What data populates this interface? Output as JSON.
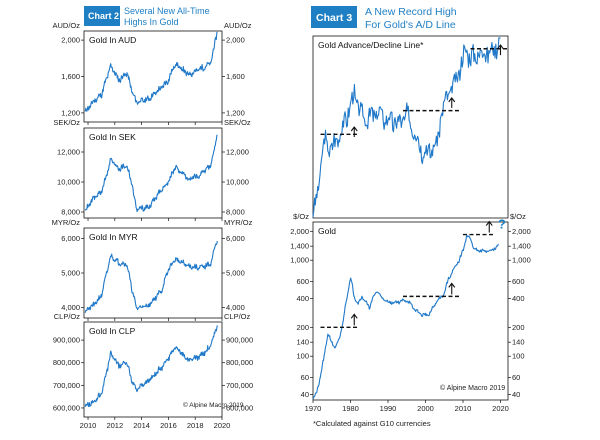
{
  "chart2": {
    "label": "Chart 2",
    "subtitle_line1": "Several New All-Time",
    "subtitle_line2": "Highs In Gold",
    "accent": "#1f7fc4",
    "footnote": "© Alpine Macro 2019"
  },
  "chart3": {
    "label": "Chart 3",
    "subtitle_line1": "A New Record High",
    "subtitle_line2": "For Gold's A/D Line",
    "footnote_left": "*Calculated against G10 currencies",
    "copyright": "© Alpine Macro 2019",
    "question_mark": "?"
  },
  "chart_data": [
    {
      "type": "line",
      "title": "Gold In AUD",
      "ylabel": "AUD/Oz",
      "x_ticks": [
        "2010",
        "2012",
        "2014",
        "2016",
        "2018",
        "2020"
      ],
      "xlim": [
        2009.7,
        2020
      ],
      "ylim": [
        1100,
        2100
      ],
      "yticks": [
        1200,
        1600,
        2000
      ],
      "ytick_labels": [
        "1,200",
        "1,600",
        "2,000"
      ],
      "series": [
        {
          "name": "Gold in AUD",
          "x": [
            2009.8,
            2010.5,
            2011.0,
            2011.7,
            2012.3,
            2012.9,
            2013.3,
            2013.6,
            2014.5,
            2015.5,
            2016.0,
            2016.5,
            2017.5,
            2018.3,
            2018.8,
            2019.2,
            2019.5,
            2019.65
          ],
          "y": [
            1210,
            1340,
            1400,
            1720,
            1560,
            1640,
            1430,
            1320,
            1350,
            1480,
            1560,
            1740,
            1620,
            1680,
            1710,
            1760,
            2000,
            2100
          ]
        }
      ]
    },
    {
      "type": "line",
      "title": "Gold In SEK",
      "ylabel": "SEK/Oz",
      "x_ticks": [
        "2010",
        "2012",
        "2014",
        "2016",
        "2018",
        "2020"
      ],
      "xlim": [
        2009.7,
        2020
      ],
      "ylim": [
        7600,
        13600
      ],
      "yticks": [
        8000,
        10000,
        12000
      ],
      "ytick_labels": [
        "8,000",
        "10,000",
        "12,000"
      ],
      "series": [
        {
          "name": "Gold in SEK",
          "x": [
            2009.8,
            2010.5,
            2011.0,
            2011.7,
            2012.3,
            2012.9,
            2013.3,
            2013.6,
            2014.5,
            2015.5,
            2016.0,
            2016.5,
            2017.5,
            2018.3,
            2018.8,
            2019.2,
            2019.5,
            2019.65
          ],
          "y": [
            8100,
            9000,
            9300,
            11500,
            10900,
            11100,
            9800,
            8200,
            8300,
            9500,
            10000,
            11000,
            10200,
            10400,
            10800,
            11200,
            12500,
            13200
          ]
        }
      ]
    },
    {
      "type": "line",
      "title": "Gold In MYR",
      "ylabel": "MYR/Oz",
      "x_ticks": [
        "2010",
        "2012",
        "2014",
        "2016",
        "2018",
        "2020"
      ],
      "xlim": [
        2009.7,
        2020
      ],
      "ylim": [
        3700,
        6300
      ],
      "yticks": [
        4000,
        5000,
        6000
      ],
      "ytick_labels": [
        "4,000",
        "5,000",
        "6,000"
      ],
      "series": [
        {
          "name": "Gold in MYR",
          "x": [
            2009.8,
            2010.5,
            2011.0,
            2011.7,
            2012.3,
            2012.9,
            2013.3,
            2013.6,
            2014.5,
            2015.5,
            2016.0,
            2016.5,
            2017.5,
            2018.3,
            2018.8,
            2019.2,
            2019.5,
            2019.65
          ],
          "y": [
            3900,
            4100,
            4350,
            5500,
            5300,
            5250,
            4500,
            4000,
            4050,
            4500,
            5100,
            5400,
            5200,
            5150,
            5200,
            5300,
            5800,
            5950
          ]
        }
      ]
    },
    {
      "type": "line",
      "title": "Gold In CLP",
      "ylabel": "CLP/Oz",
      "x_ticks": [
        "2010",
        "2012",
        "2014",
        "2016",
        "2018",
        "2020"
      ],
      "xlim": [
        2009.7,
        2020
      ],
      "ylim": [
        560000,
        980000
      ],
      "yticks": [
        600000,
        700000,
        800000,
        900000
      ],
      "ytick_labels": [
        "600,000",
        "700,000",
        "800,000",
        "900,000"
      ],
      "series": [
        {
          "name": "Gold in CLP",
          "x": [
            2009.8,
            2010.5,
            2011.0,
            2011.7,
            2012.3,
            2012.9,
            2013.3,
            2013.6,
            2014.5,
            2015.5,
            2016.0,
            2016.5,
            2017.5,
            2018.3,
            2018.8,
            2019.2,
            2019.5,
            2019.65
          ],
          "y": [
            610000,
            630000,
            660000,
            840000,
            790000,
            800000,
            720000,
            680000,
            720000,
            780000,
            820000,
            870000,
            810000,
            830000,
            850000,
            880000,
            940000,
            970000
          ]
        }
      ]
    },
    {
      "type": "line",
      "title": "Gold Advance/Decline Line*",
      "ylabel": "",
      "xlim": [
        1970,
        2022
      ],
      "ylim": [
        0,
        100
      ],
      "series": [
        {
          "name": "A/D Line",
          "x": [
            1970,
            1971,
            1972,
            1973,
            1975,
            1977,
            1978,
            1980,
            1981,
            1983,
            1985,
            1987,
            1990,
            1993,
            1995,
            1997,
            1999,
            2000,
            2001,
            2003,
            2004,
            2006,
            2008,
            2009,
            2011,
            2012,
            2014,
            2016,
            2017,
            2019,
            2020
          ],
          "y": [
            2,
            10,
            28,
            42,
            38,
            46,
            50,
            62,
            68,
            56,
            55,
            58,
            54,
            52,
            57,
            48,
            38,
            36,
            37,
            40,
            55,
            68,
            74,
            82,
            93,
            88,
            90,
            92,
            90,
            95,
            98
          ]
        }
      ]
    },
    {
      "type": "line",
      "title": "Gold",
      "ylabel": "$/Oz",
      "log_scale": true,
      "x_ticks": [
        "1970",
        "1980",
        "1990",
        "2000",
        "2010",
        "2020"
      ],
      "xlim": [
        1970,
        2022
      ],
      "ylim": [
        35,
        2500
      ],
      "yticks": [
        40,
        60,
        100,
        140,
        200,
        400,
        600,
        1000,
        1400,
        2000
      ],
      "ytick_labels": [
        "40",
        "60",
        "100",
        "140",
        "200",
        "400",
        "600",
        "1,000",
        "1,400",
        "2,000"
      ],
      "series": [
        {
          "name": "Gold price",
          "x": [
            1970,
            1971,
            1972,
            1973,
            1974,
            1975,
            1976,
            1977,
            1978,
            1979,
            1980,
            1981,
            1982,
            1983,
            1985,
            1987,
            1989,
            1991,
            1993,
            1995,
            1997,
            1999,
            2001,
            2002,
            2003,
            2005,
            2006,
            2008,
            2009,
            2010,
            2011,
            2012,
            2013,
            2014,
            2016,
            2018,
            2019.5
          ],
          "y": [
            36,
            42,
            60,
            100,
            170,
            140,
            120,
            150,
            220,
            400,
            650,
            420,
            350,
            420,
            320,
            480,
            380,
            360,
            370,
            385,
            310,
            270,
            270,
            320,
            370,
            450,
            620,
            850,
            1000,
            1250,
            1800,
            1650,
            1300,
            1250,
            1250,
            1280,
            1420
          ]
        }
      ]
    }
  ]
}
